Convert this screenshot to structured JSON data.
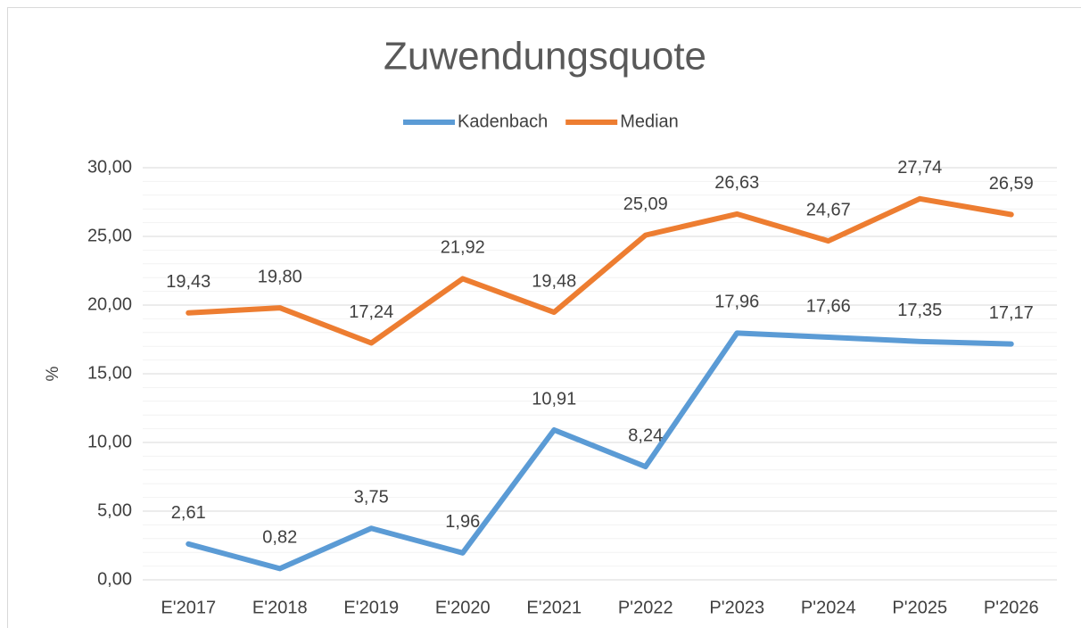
{
  "chart_data": {
    "type": "line",
    "title": "Zuwendungsquote",
    "y_label": "%",
    "categories": [
      "E'2017",
      "E'2018",
      "E'2019",
      "E'2020",
      "E'2021",
      "P'2022",
      "P'2023",
      "P'2024",
      "P'2025",
      "P'2026"
    ],
    "series": [
      {
        "name": "Kadenbach",
        "color": "#5b9bd5",
        "values": [
          2.61,
          0.82,
          3.75,
          1.96,
          10.91,
          8.24,
          17.96,
          17.66,
          17.35,
          17.17
        ],
        "value_labels": [
          "2,61",
          "0,82",
          "3,75",
          "1,96",
          "10,91",
          "8,24",
          "17,96",
          "17,66",
          "17,35",
          "17,17"
        ]
      },
      {
        "name": "Median",
        "color": "#ed7d31",
        "values": [
          19.43,
          19.8,
          17.24,
          21.92,
          19.48,
          25.09,
          26.63,
          24.67,
          27.74,
          26.59
        ],
        "value_labels": [
          "19,43",
          "19,80",
          "17,24",
          "21,92",
          "19,48",
          "25,09",
          "26,63",
          "24,67",
          "27,74",
          "26,59"
        ]
      }
    ],
    "ylim": [
      0,
      30
    ],
    "yticks": [
      {
        "value": 0,
        "label": "0,00"
      },
      {
        "value": 5,
        "label": "5,00"
      },
      {
        "value": 10,
        "label": "10,00"
      },
      {
        "value": 15,
        "label": "15,00"
      },
      {
        "value": 20,
        "label": "20,00"
      },
      {
        "value": 25,
        "label": "25,00"
      },
      {
        "value": 30,
        "label": "30,00"
      }
    ],
    "yminorticks": [
      1,
      2,
      3,
      4,
      6,
      7,
      8,
      9,
      11,
      12,
      13,
      14,
      16,
      17,
      18,
      19,
      21,
      22,
      23,
      24,
      26,
      27,
      28,
      29
    ],
    "grid": true,
    "legend": "top"
  }
}
